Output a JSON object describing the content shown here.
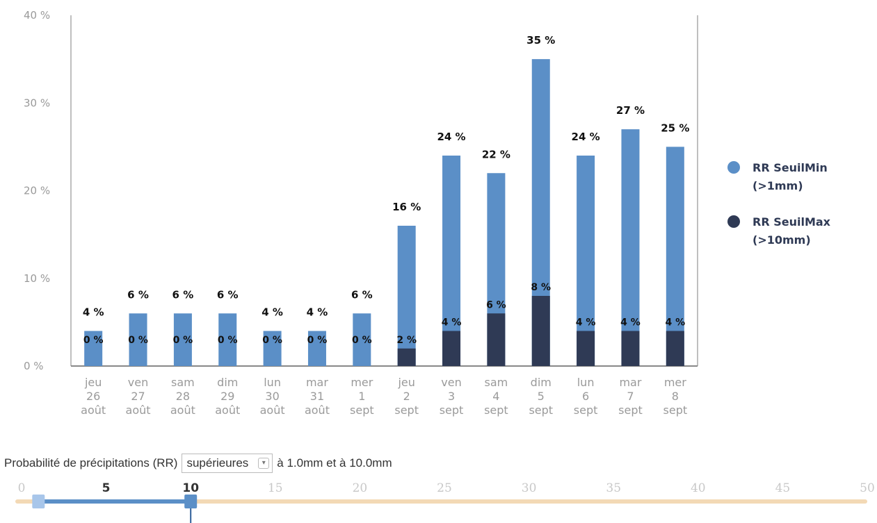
{
  "chart_data": {
    "type": "bar",
    "categories": [
      [
        "jeu",
        "26",
        "août"
      ],
      [
        "ven",
        "27",
        "août"
      ],
      [
        "sam",
        "28",
        "août"
      ],
      [
        "dim",
        "29",
        "août"
      ],
      [
        "lun",
        "30",
        "août"
      ],
      [
        "mar",
        "31",
        "août"
      ],
      [
        "mer",
        "1",
        "sept"
      ],
      [
        "jeu",
        "2",
        "sept"
      ],
      [
        "ven",
        "3",
        "sept"
      ],
      [
        "sam",
        "4",
        "sept"
      ],
      [
        "dim",
        "5",
        "sept"
      ],
      [
        "lun",
        "6",
        "sept"
      ],
      [
        "mar",
        "7",
        "sept"
      ],
      [
        "mer",
        "8",
        "sept"
      ]
    ],
    "series": [
      {
        "name": "RR SeuilMin (>1mm)",
        "color": "#5b8fc7",
        "values": [
          4,
          6,
          6,
          6,
          4,
          4,
          6,
          16,
          24,
          22,
          35,
          24,
          27,
          25
        ],
        "labels": [
          "4 %",
          "6 %",
          "6 %",
          "6 %",
          "4 %",
          "4 %",
          "6 %",
          "16 %",
          "24 %",
          "22 %",
          "35 %",
          "24 %",
          "27 %",
          "25 %"
        ]
      },
      {
        "name": "RR SeuilMax (>10mm)",
        "color": "#2f3a55",
        "values": [
          0,
          0,
          0,
          0,
          0,
          0,
          0,
          2,
          4,
          6,
          8,
          4,
          4,
          4
        ],
        "labels": [
          "0 %",
          "0 %",
          "0 %",
          "0 %",
          "0 %",
          "0 %",
          "0 %",
          "2 %",
          "4 %",
          "6 %",
          "8 %",
          "4 %",
          "4 %",
          "4 %"
        ]
      }
    ],
    "yticks": [
      "0 %",
      "10 %",
      "20 %",
      "30 %",
      "40 %"
    ],
    "ylim": [
      0,
      40
    ],
    "legend": {
      "placement": "right",
      "items": [
        {
          "line1": "RR SeuilMin",
          "line2": "(>1mm)"
        },
        {
          "line1": "RR SeuilMax",
          "line2": "(>10mm)"
        }
      ]
    },
    "grid": false
  },
  "controls": {
    "prefix": "Probabilité de précipitations (RR)",
    "select_value": "supérieures",
    "suffix": "à 1.0mm et à 10.0mm"
  },
  "slider": {
    "ticks": [
      "0",
      "5",
      "10",
      "15",
      "20",
      "25",
      "30",
      "35",
      "40",
      "45",
      "50"
    ],
    "min": 0,
    "max": 50,
    "low": 1,
    "high": 10,
    "track_color": "#f3d9b5",
    "fill_color": "#5b8fc7"
  }
}
